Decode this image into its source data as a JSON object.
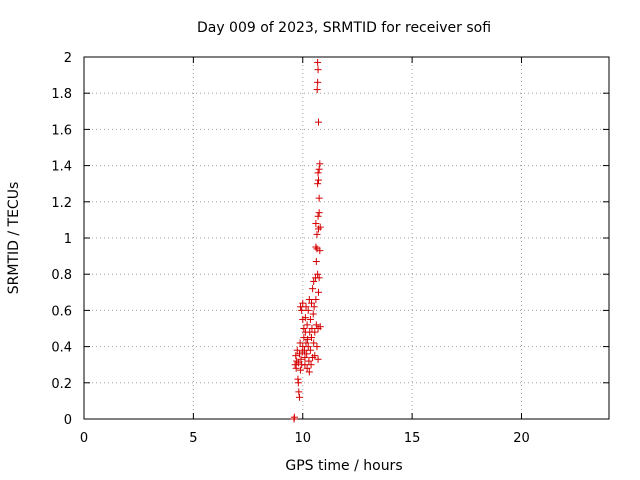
{
  "chart_data": {
    "type": "scatter",
    "title": "Day 009 of 2023, SRMTID for receiver sofi",
    "xlabel": "GPS time / hours",
    "ylabel": "SRMTID / TECUs",
    "xlim": [
      0,
      24
    ],
    "ylim": [
      0,
      2
    ],
    "xticks": [
      0,
      5,
      10,
      15,
      20
    ],
    "xtick_labels": [
      "0",
      "5",
      "10",
      "15",
      "20"
    ],
    "yticks": [
      0,
      0.2,
      0.4,
      0.6,
      0.8,
      1,
      1.2,
      1.4,
      1.6,
      1.8,
      2
    ],
    "ytick_labels": [
      "0",
      "0.2",
      "0.4",
      "0.6",
      "0.8",
      "1",
      "1.2",
      "1.4",
      "1.6",
      "1.8",
      "2"
    ],
    "grid": true,
    "marker": "+",
    "color": "#d40000",
    "series": [
      {
        "name": "SRMTID",
        "points": [
          [
            9.6,
            0.0
          ],
          [
            9.62,
            0.01
          ],
          [
            9.65,
            0.3
          ],
          [
            9.68,
            0.35
          ],
          [
            9.7,
            0.28
          ],
          [
            9.72,
            0.32
          ],
          [
            9.75,
            0.38
          ],
          [
            9.78,
            0.22
          ],
          [
            9.8,
            0.2
          ],
          [
            9.82,
            0.15
          ],
          [
            9.85,
            0.12
          ],
          [
            9.8,
            0.31
          ],
          [
            9.85,
            0.36
          ],
          [
            9.88,
            0.42
          ],
          [
            9.9,
            0.27
          ],
          [
            9.92,
            0.33
          ],
          [
            9.95,
            0.3
          ],
          [
            9.98,
            0.37
          ],
          [
            10.0,
            0.4
          ],
          [
            10.0,
            0.55
          ],
          [
            9.95,
            0.6
          ],
          [
            9.9,
            0.62
          ],
          [
            10.0,
            0.64
          ],
          [
            10.05,
            0.5
          ],
          [
            10.05,
            0.45
          ],
          [
            10.08,
            0.38
          ],
          [
            10.1,
            0.34
          ],
          [
            10.1,
            0.3
          ],
          [
            10.12,
            0.56
          ],
          [
            10.12,
            0.48
          ],
          [
            10.15,
            0.42
          ],
          [
            10.15,
            0.62
          ],
          [
            10.18,
            0.36
          ],
          [
            10.2,
            0.28
          ],
          [
            10.2,
            0.52
          ],
          [
            10.22,
            0.44
          ],
          [
            10.25,
            0.6
          ],
          [
            10.25,
            0.4
          ],
          [
            10.28,
            0.32
          ],
          [
            10.3,
            0.26
          ],
          [
            10.3,
            0.66
          ],
          [
            10.32,
            0.48
          ],
          [
            10.35,
            0.55
          ],
          [
            10.35,
            0.38
          ],
          [
            10.38,
            0.3
          ],
          [
            10.4,
            0.45
          ],
          [
            10.4,
            0.64
          ],
          [
            10.42,
            0.5
          ],
          [
            10.45,
            0.34
          ],
          [
            10.45,
            0.72
          ],
          [
            10.48,
            0.58
          ],
          [
            10.5,
            0.42
          ],
          [
            10.5,
            0.76
          ],
          [
            10.52,
            0.62
          ],
          [
            10.55,
            0.35
          ],
          [
            10.55,
            0.48
          ],
          [
            10.58,
            0.78
          ],
          [
            10.6,
            0.66
          ],
          [
            10.6,
            0.95
          ],
          [
            10.62,
            0.52
          ],
          [
            10.65,
            0.4
          ],
          [
            10.65,
            0.94
          ],
          [
            10.68,
            0.8
          ],
          [
            10.7,
            0.5
          ],
          [
            10.7,
            0.33
          ],
          [
            10.72,
            0.7
          ],
          [
            10.72,
            1.05
          ],
          [
            10.6,
            1.08
          ],
          [
            10.65,
            1.02
          ],
          [
            10.7,
            1.12
          ],
          [
            10.75,
            1.14
          ],
          [
            10.62,
            0.87
          ],
          [
            10.68,
            1.3
          ],
          [
            10.72,
            1.32
          ],
          [
            10.7,
            1.36
          ],
          [
            10.75,
            1.38
          ],
          [
            10.78,
            1.41
          ],
          [
            10.75,
            1.22
          ],
          [
            10.72,
            1.64
          ],
          [
            10.66,
            1.82
          ],
          [
            10.68,
            1.86
          ],
          [
            10.7,
            1.93
          ],
          [
            10.68,
            1.97
          ],
          [
            10.78,
            0.93
          ],
          [
            10.8,
            1.06
          ],
          [
            10.8,
            0.51
          ],
          [
            10.75,
            0.78
          ]
        ]
      }
    ]
  }
}
